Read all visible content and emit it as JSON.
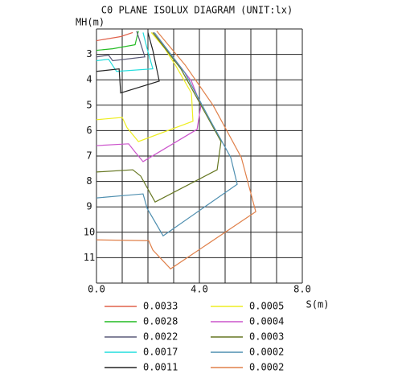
{
  "chart_data": {
    "type": "contour",
    "title": "C0 PLANE ISOLUX DIAGRAM (UNIT:lx)",
    "y_label": "MH(m)",
    "x_label": "S(m)",
    "xlim": [
      0,
      8
    ],
    "ylim": [
      2,
      12
    ],
    "y_inverted": true,
    "xticks": [
      {
        "value": 0,
        "label": "0.0"
      },
      {
        "value": 4,
        "label": "4.0"
      },
      {
        "value": 8,
        "label": "8.0"
      }
    ],
    "yticks": [
      3,
      4,
      5,
      6,
      7,
      8,
      9,
      10,
      11
    ],
    "xgrid": [
      0,
      1,
      2,
      3,
      4,
      5,
      6,
      7,
      8
    ],
    "ygrid": [
      2,
      3,
      4,
      5,
      6,
      7,
      8,
      9,
      10,
      11,
      12
    ],
    "series": [
      {
        "name": "0.0033",
        "color": "#e0604a",
        "x": [
          0,
          0.94,
          1.41
        ],
        "y": [
          2.46,
          2.3,
          2.14
        ]
      },
      {
        "name": "0.0028",
        "color": "#22bb22",
        "x": [
          0,
          0.63,
          1.5,
          1.63
        ],
        "y": [
          2.84,
          2.78,
          2.62,
          2.08
        ]
      },
      {
        "name": "0.0022",
        "color": "#5a5a78",
        "x": [
          0,
          0.47,
          0.63,
          1.88,
          1.63,
          1.56
        ],
        "y": [
          3.1,
          3.03,
          3.25,
          3.1,
          2.3,
          2.08
        ]
      },
      {
        "name": "0.0017",
        "color": "#22dddd",
        "x": [
          0,
          0.47,
          0.78,
          2.19,
          1.97,
          1.81
        ],
        "y": [
          3.25,
          3.19,
          3.67,
          3.57,
          2.78,
          2.14
        ]
      },
      {
        "name": "0.0011",
        "color": "#222222",
        "x": [
          0,
          0.88,
          0.94,
          2.44,
          2.19,
          2.0
        ],
        "y": [
          3.67,
          3.57,
          4.52,
          4.05,
          2.84,
          2.14
        ]
      },
      {
        "name": "0.0005",
        "color": "#eeee22",
        "x": [
          0,
          1,
          1.19,
          1.63,
          3.75,
          3.69,
          3.06,
          2.66,
          2.13
        ],
        "y": [
          5.57,
          5.48,
          5.89,
          6.43,
          5.63,
          4.52,
          3.41,
          2.78,
          2.14
        ]
      },
      {
        "name": "0.0004",
        "color": "#cc55cc",
        "x": [
          0,
          1.25,
          1.5,
          1.81,
          3.91,
          4.06,
          3.69,
          2.97,
          2.19
        ],
        "y": [
          6.59,
          6.52,
          6.84,
          7.22,
          5.95,
          5.0,
          4.05,
          3.1,
          2.14
        ]
      },
      {
        "name": "0.0003",
        "color": "#667722",
        "x": [
          0,
          1.41,
          1.72,
          2.28,
          4.69,
          4.84,
          4.06,
          3.28,
          2.19
        ],
        "y": [
          7.63,
          7.54,
          7.79,
          8.81,
          7.54,
          6.43,
          5.0,
          3.57,
          2.14
        ]
      },
      {
        "name": "0.0002",
        "color": "#4f8fb0",
        "x": [
          0,
          1.81,
          1.97,
          2.59,
          5.47,
          5.22,
          4.44,
          3.44,
          2.25
        ],
        "y": [
          8.65,
          8.49,
          9.06,
          10.14,
          8.11,
          7.06,
          5.63,
          3.73,
          2.14
        ]
      },
      {
        "name": "0.0002",
        "color": "#e0804a",
        "x": [
          0,
          2.03,
          2.19,
          2.88,
          6.19,
          5.63,
          4.53,
          3.44,
          2.34
        ],
        "y": [
          10.3,
          10.33,
          10.7,
          11.44,
          9.19,
          7.06,
          5.0,
          3.41,
          2.08
        ]
      }
    ]
  }
}
